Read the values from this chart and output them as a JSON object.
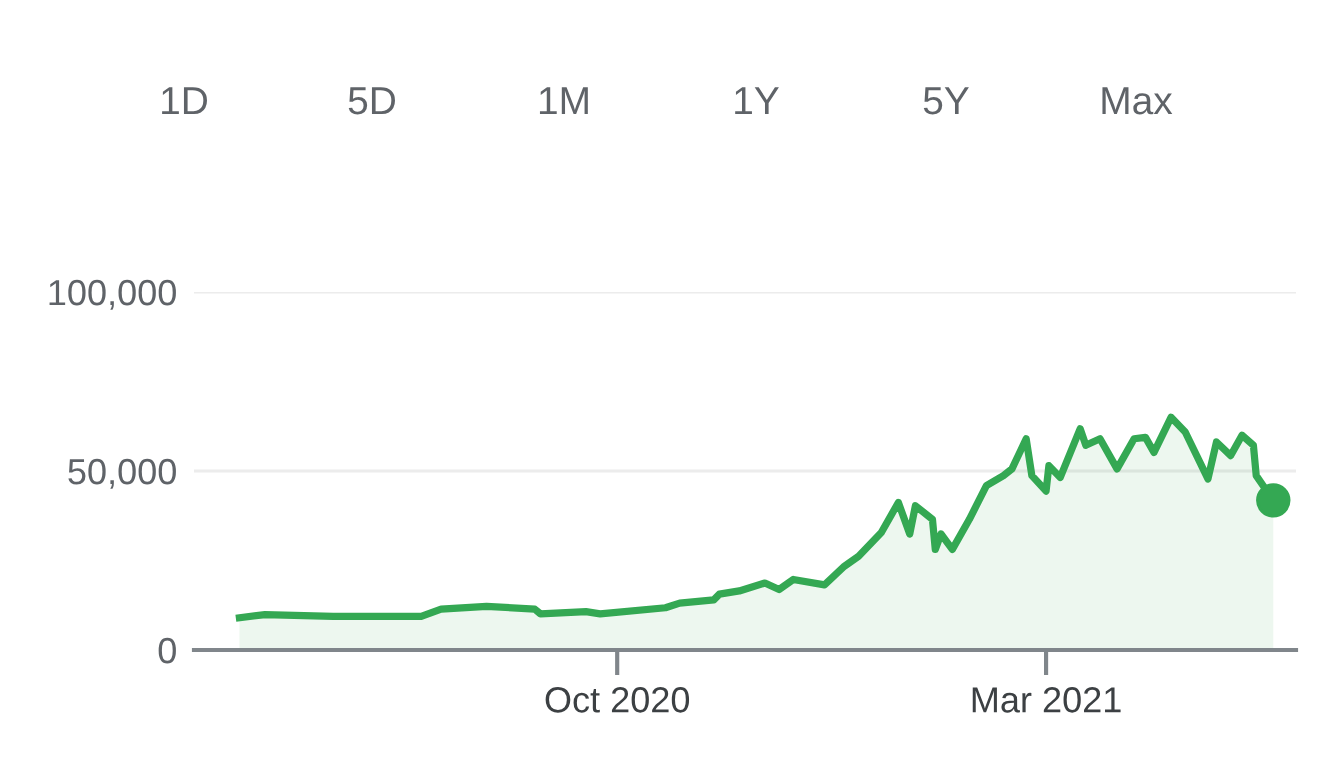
{
  "chart_data": {
    "type": "area",
    "annotations": [
      "1D",
      "5D",
      "1M",
      "1Y",
      "5Y",
      "Max"
    ],
    "series": [
      {
        "color": "#34a853",
        "x": [
          "2020-05-21",
          "2020-05-30",
          "2020-06-23",
          "2020-07-24",
          "2020-07-31",
          "2020-08-16",
          "2020-09-02",
          "2020-09-04",
          "2020-09-20",
          "2020-09-25",
          "2020-10-18",
          "2020-10-23",
          "2020-11-04",
          "2020-11-06",
          "2020-11-13",
          "2020-11-22",
          "2020-11-27",
          "2020-12-02",
          "2020-12-13",
          "2020-12-20",
          "2020-12-25",
          "2021-01-02",
          "2021-01-08",
          "2021-01-12",
          "2021-01-14",
          "2021-01-20",
          "2021-01-21",
          "2021-01-23",
          "2021-01-27",
          "2021-02-02",
          "2021-02-08",
          "2021-02-14",
          "2021-02-17",
          "2021-02-22",
          "2021-02-24",
          "2021-03-01",
          "2021-03-02",
          "2021-03-06",
          "2021-03-13",
          "2021-03-15",
          "2021-03-20",
          "2021-03-26",
          "2021-04-01",
          "2021-04-05",
          "2021-04-08",
          "2021-04-14",
          "2021-04-19",
          "2021-04-27",
          "2021-04-30",
          "2021-05-05",
          "2021-05-09",
          "2021-05-13",
          "2021-05-14",
          "2021-05-20"
        ],
        "values": [
          9000,
          9900,
          9400,
          9400,
          11400,
          12200,
          11400,
          10100,
          10700,
          10100,
          11800,
          13100,
          14000,
          15600,
          16500,
          18700,
          16900,
          19700,
          18200,
          23400,
          26200,
          32800,
          41200,
          32400,
          40300,
          36500,
          28100,
          32400,
          28100,
          36500,
          45900,
          48700,
          50600,
          59000,
          48700,
          44400,
          51500,
          48200,
          61800,
          57200,
          59000,
          50600,
          59000,
          59400,
          55200,
          65000,
          60900,
          47800,
          58100,
          54300,
          60000,
          57200,
          48700,
          41800
        ]
      },
      {
        "type": "scatter",
        "marker": "circle",
        "color": "#34a853",
        "x": [
          "2021-05-20"
        ],
        "values": [
          41800
        ]
      }
    ],
    "xlim": [
      "2020-05-05",
      "2021-05-28"
    ],
    "xticks": [
      {
        "value": "2020-10-01",
        "label": "Oct 2020"
      },
      {
        "value": "2021-03-01",
        "label": "Mar 2021"
      }
    ],
    "ylim": [
      0,
      100000
    ],
    "yticks": [
      {
        "value": 0,
        "label": "0"
      },
      {
        "value": 50000,
        "label": "50,000"
      },
      {
        "value": 100000,
        "label": "100,000"
      }
    ],
    "grid": "y",
    "marker": "none",
    "line_style": "solid"
  }
}
